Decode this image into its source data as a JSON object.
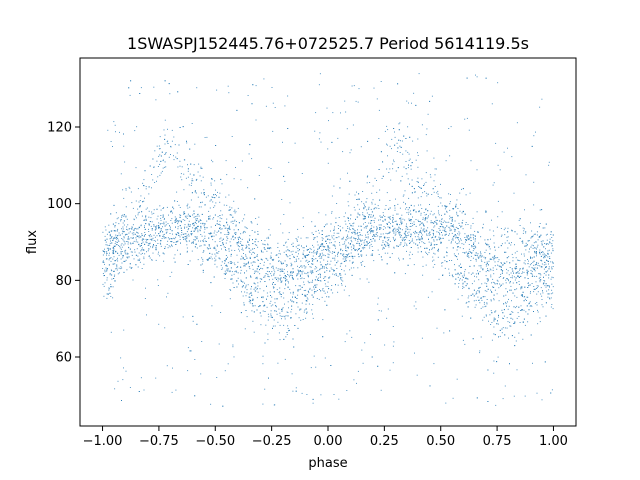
{
  "chart_data": {
    "type": "scatter",
    "title": "1SWASPJ152445.76+072525.7 Period 5614119.5s",
    "xlabel": "phase",
    "ylabel": "flux",
    "xlim": [
      -1.1,
      1.1
    ],
    "ylim": [
      42,
      138
    ],
    "x_ticks": [
      -1.0,
      -0.75,
      -0.5,
      -0.25,
      0.0,
      0.25,
      0.5,
      0.75,
      1.0
    ],
    "x_tick_labels": [
      "−1.00",
      "−0.75",
      "−0.50",
      "−0.25",
      "0.00",
      "0.25",
      "0.50",
      "0.75",
      "1.00"
    ],
    "y_ticks": [
      60,
      80,
      100,
      120
    ],
    "y_tick_labels": [
      "60",
      "80",
      "100",
      "120"
    ],
    "grid": false,
    "marker_color": "#1f77b4",
    "series": [
      {
        "profile_phase": [
          -1.0,
          -0.95,
          -0.9,
          -0.85,
          -0.8,
          -0.75,
          -0.7,
          -0.65,
          -0.6,
          -0.55,
          -0.5,
          -0.45,
          -0.4,
          -0.35,
          -0.3,
          -0.25,
          -0.2,
          -0.15,
          -0.1,
          -0.05,
          0.0,
          0.05,
          0.1,
          0.15,
          0.2,
          0.25,
          0.3,
          0.35,
          0.4,
          0.45,
          0.5,
          0.55,
          0.6,
          0.65,
          0.7,
          0.75,
          0.8,
          0.85,
          0.9,
          0.95,
          1.0
        ],
        "profile_flux": [
          86,
          89,
          91,
          93,
          94,
          94,
          94,
          95,
          95,
          94,
          93,
          92,
          90,
          87,
          84,
          82,
          81,
          82,
          84,
          86,
          86,
          89,
          91,
          93,
          94,
          94,
          94,
          95,
          95,
          94,
          93,
          92,
          90,
          87,
          84,
          82,
          81,
          82,
          84,
          86,
          86
        ],
        "lower_branch_flux": [
          78,
          82,
          86,
          89,
          90,
          91,
          92,
          92,
          91,
          89,
          87,
          84,
          80,
          76,
          73,
          71,
          70,
          72,
          75,
          78,
          78,
          82,
          86,
          89,
          90,
          91,
          92,
          92,
          91,
          89,
          87,
          84,
          80,
          76,
          73,
          71,
          70,
          72,
          75,
          78,
          78
        ],
        "upper_branch_flux": [
          90,
          93,
          96,
          100,
          104,
          110,
          116,
          112,
          106,
          104,
          101,
          98,
          95,
          92,
          90,
          89,
          89,
          90,
          90,
          90,
          90,
          93,
          96,
          100,
          104,
          110,
          116,
          112,
          106,
          104,
          101,
          98,
          95,
          92,
          90,
          89,
          89,
          90,
          90,
          90,
          90
        ],
        "scatter_range": [
          47,
          134
        ]
      }
    ]
  }
}
